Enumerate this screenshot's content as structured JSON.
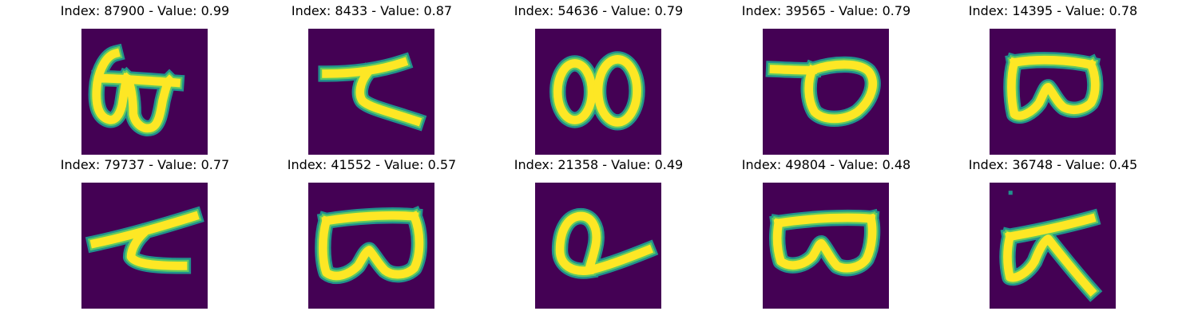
{
  "colors": {
    "background": "#440154",
    "stroke_core": "#fde725",
    "stroke_edge": "#5ec962",
    "stroke_halo": "#21918c"
  },
  "panels": [
    {
      "title": "Index: 87900 - Value: 0.99",
      "glyph": "glyph-87900"
    },
    {
      "title": "Index: 8433 - Value: 0.87",
      "glyph": "glyph-8433"
    },
    {
      "title": "Index: 54636 - Value: 0.79",
      "glyph": "glyph-54636"
    },
    {
      "title": "Index: 39565 - Value: 0.79",
      "glyph": "glyph-39565"
    },
    {
      "title": "Index: 14395 - Value: 0.78",
      "glyph": "glyph-14395"
    },
    {
      "title": "Index: 79737 - Value: 0.77",
      "glyph": "glyph-79737"
    },
    {
      "title": "Index: 41552 - Value: 0.57",
      "glyph": "glyph-41552"
    },
    {
      "title": "Index: 21358 - Value: 0.49",
      "glyph": "glyph-21358"
    },
    {
      "title": "Index: 49804 - Value: 0.48",
      "glyph": "glyph-49804"
    },
    {
      "title": "Index: 36748 - Value: 0.45",
      "glyph": "glyph-36748"
    }
  ]
}
